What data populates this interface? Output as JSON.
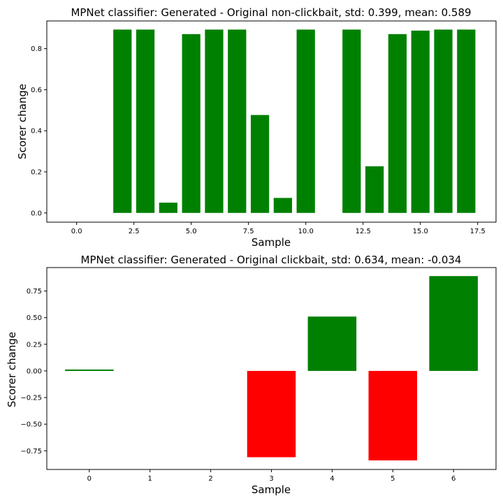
{
  "chart_data": [
    {
      "type": "bar",
      "title": "MPNet classifier: Generated - Original non-clickbait, std: 0.399, mean: 0.589",
      "xlabel": "Sample",
      "ylabel": "Scorer change",
      "xlim": [
        -1.3,
        18.3
      ],
      "ylim": [
        -0.045,
        0.935
      ],
      "bar_width": 0.8,
      "x": [
        0,
        1,
        2,
        3,
        4,
        5,
        6,
        7,
        8,
        9,
        10,
        11,
        12,
        13,
        14,
        15,
        16,
        17
      ],
      "values": [
        0,
        0,
        0.893,
        0.893,
        0.05,
        0.871,
        0.893,
        0.893,
        0.477,
        0.073,
        0.893,
        0,
        0.893,
        0.227,
        0.871,
        0.888,
        0.893,
        0.893
      ],
      "xticks": [
        0.0,
        2.5,
        5.0,
        7.5,
        10.0,
        12.5,
        15.0,
        17.5
      ],
      "xtick_labels": [
        "0.0",
        "2.5",
        "5.0",
        "7.5",
        "10.0",
        "12.5",
        "15.0",
        "17.5"
      ],
      "yticks": [
        0.0,
        0.2,
        0.4,
        0.6,
        0.8
      ],
      "ytick_labels": [
        "0.0",
        "0.2",
        "0.4",
        "0.6",
        "0.8"
      ],
      "positive_color": "#008000",
      "negative_color": "#ff0000"
    },
    {
      "type": "bar",
      "title": "MPNet classifier: Generated - Original clickbait, std: 0.634, mean: -0.034",
      "xlabel": "Sample",
      "ylabel": "Scorer change",
      "xlim": [
        -0.7,
        6.7
      ],
      "ylim": [
        -0.925,
        0.97
      ],
      "bar_width": 0.8,
      "x": [
        0,
        1,
        2,
        3,
        4,
        5,
        6
      ],
      "values": [
        0.01,
        0,
        0,
        -0.81,
        0.51,
        -0.84,
        0.89
      ],
      "xticks": [
        0,
        1,
        2,
        3,
        4,
        5,
        6
      ],
      "xtick_labels": [
        "0",
        "1",
        "2",
        "3",
        "4",
        "5",
        "6"
      ],
      "yticks": [
        -0.75,
        -0.5,
        -0.25,
        0.0,
        0.25,
        0.5,
        0.75
      ],
      "ytick_labels": [
        "−0.75",
        "−0.50",
        "−0.25",
        "0.00",
        "0.25",
        "0.50",
        "0.75"
      ],
      "positive_color": "#008000",
      "negative_color": "#ff0000"
    }
  ]
}
